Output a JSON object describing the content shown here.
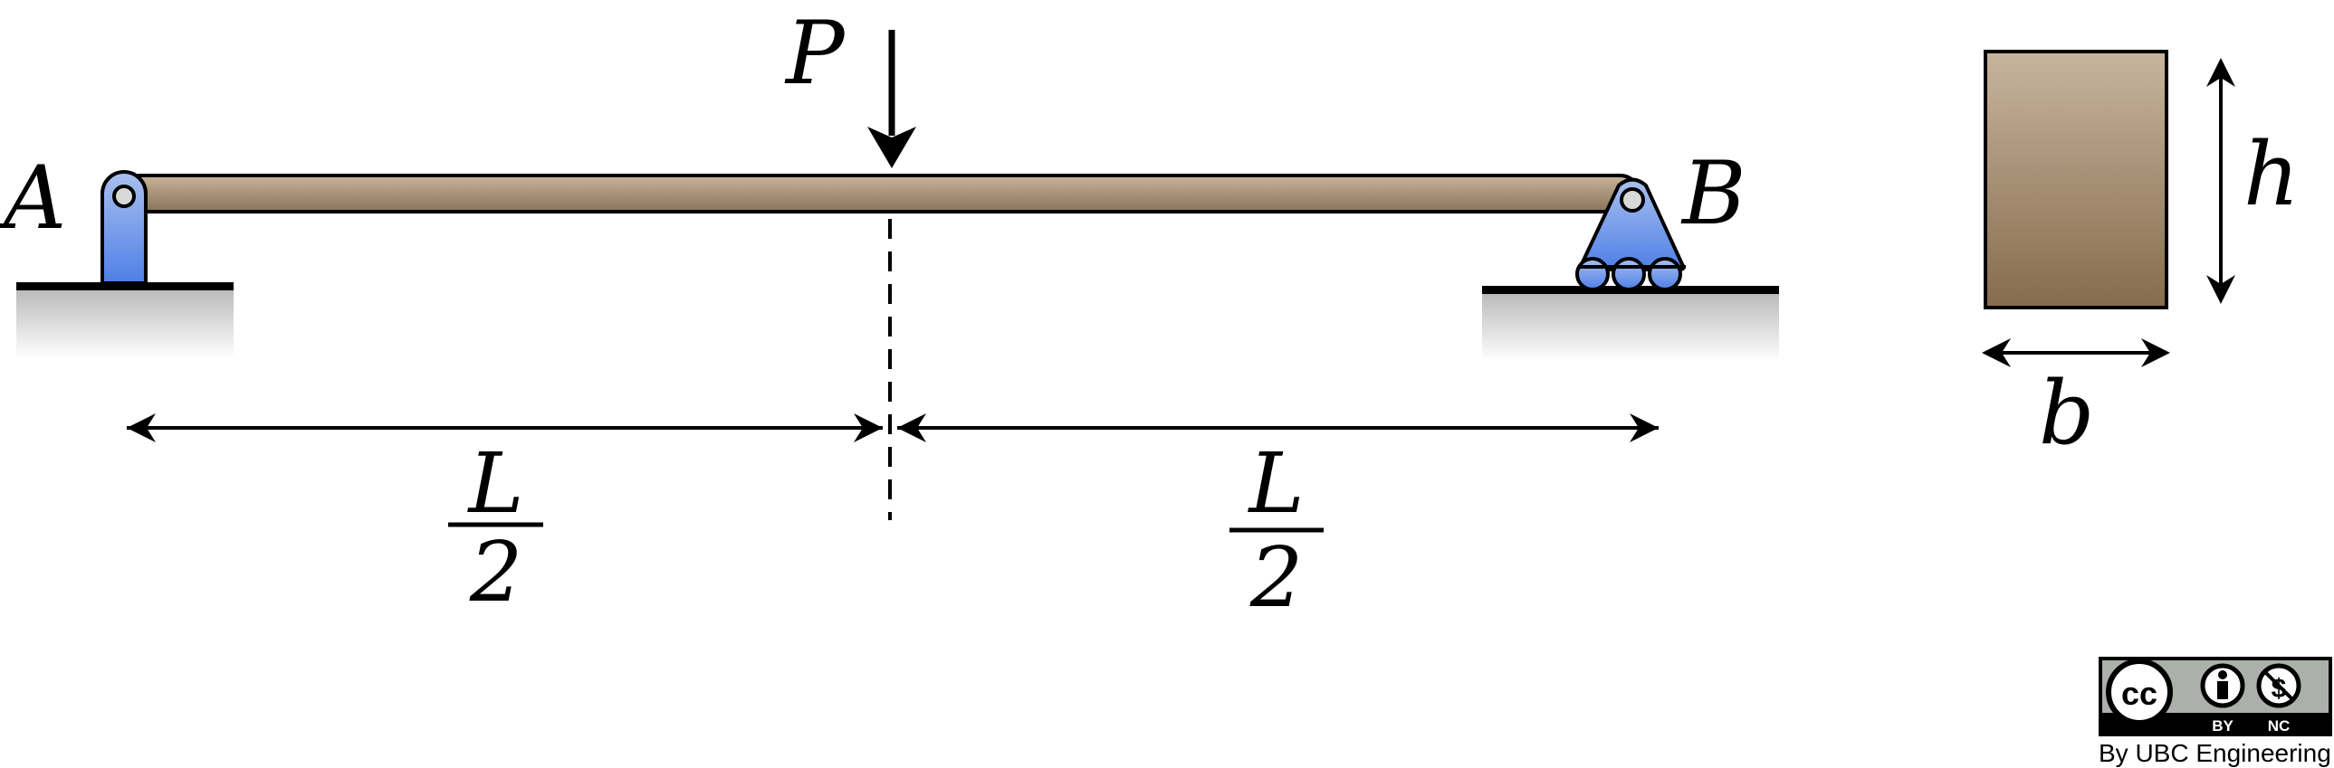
{
  "labels": {
    "support_a": "A",
    "support_b": "B",
    "load": "P",
    "left_span_numerator": "L",
    "left_span_denominator": "2",
    "right_span_numerator": "L",
    "right_span_denominator": "2",
    "section_height": "h",
    "section_width": "b"
  },
  "license": {
    "cc": "cc",
    "by": "BY",
    "nc": "NC",
    "credit": "By UBC Engineering"
  },
  "colors": {
    "beam": "#a08c70",
    "support": "#6f93e8",
    "section": "#a08c70",
    "ground": "#c8c8c8"
  },
  "icons": {
    "pin_support": "pin-support-icon",
    "roller_support": "roller-support-icon",
    "cc_logo": "cc-logo-icon",
    "attribution": "attribution-icon",
    "noncommercial": "noncommercial-icon"
  }
}
